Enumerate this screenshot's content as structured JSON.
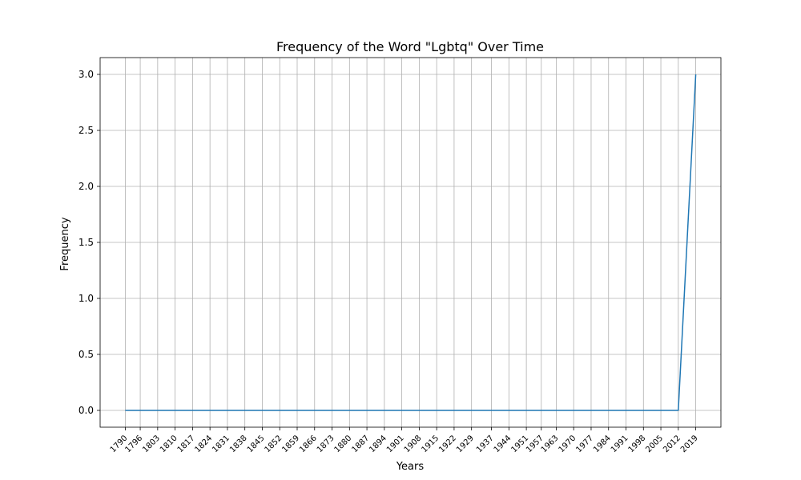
{
  "chart_data": {
    "type": "line",
    "title": "Frequency of the Word \"Lgbtq\" Over Time",
    "xlabel": "Years",
    "ylabel": "Frequency",
    "xlim": [
      1779.9,
      2029.1
    ],
    "ylim": [
      -0.15,
      3.15
    ],
    "x_ticks": [
      1790,
      1796,
      1803,
      1810,
      1817,
      1824,
      1831,
      1838,
      1845,
      1852,
      1859,
      1866,
      1873,
      1880,
      1887,
      1894,
      1901,
      1908,
      1915,
      1922,
      1929,
      1937,
      1944,
      1951,
      1957,
      1963,
      1970,
      1977,
      1984,
      1991,
      1998,
      2005,
      2012,
      2019
    ],
    "y_ticks": [
      0.0,
      0.5,
      1.0,
      1.5,
      2.0,
      2.5,
      3.0
    ],
    "y_tick_labels": [
      "0.0",
      "0.5",
      "1.0",
      "1.5",
      "2.0",
      "2.5",
      "3.0"
    ],
    "grid": true,
    "series": [
      {
        "color": "#1f77b4",
        "x": [
          1790,
          1796,
          1803,
          1810,
          1817,
          1824,
          1831,
          1838,
          1845,
          1852,
          1859,
          1866,
          1873,
          1880,
          1887,
          1894,
          1901,
          1908,
          1915,
          1922,
          1929,
          1937,
          1944,
          1951,
          1957,
          1963,
          1970,
          1977,
          1984,
          1991,
          1998,
          2005,
          2012,
          2019
        ],
        "values": [
          0,
          0,
          0,
          0,
          0,
          0,
          0,
          0,
          0,
          0,
          0,
          0,
          0,
          0,
          0,
          0,
          0,
          0,
          0,
          0,
          0,
          0,
          0,
          0,
          0,
          0,
          0,
          0,
          0,
          0,
          0,
          0,
          0,
          3
        ]
      }
    ]
  }
}
